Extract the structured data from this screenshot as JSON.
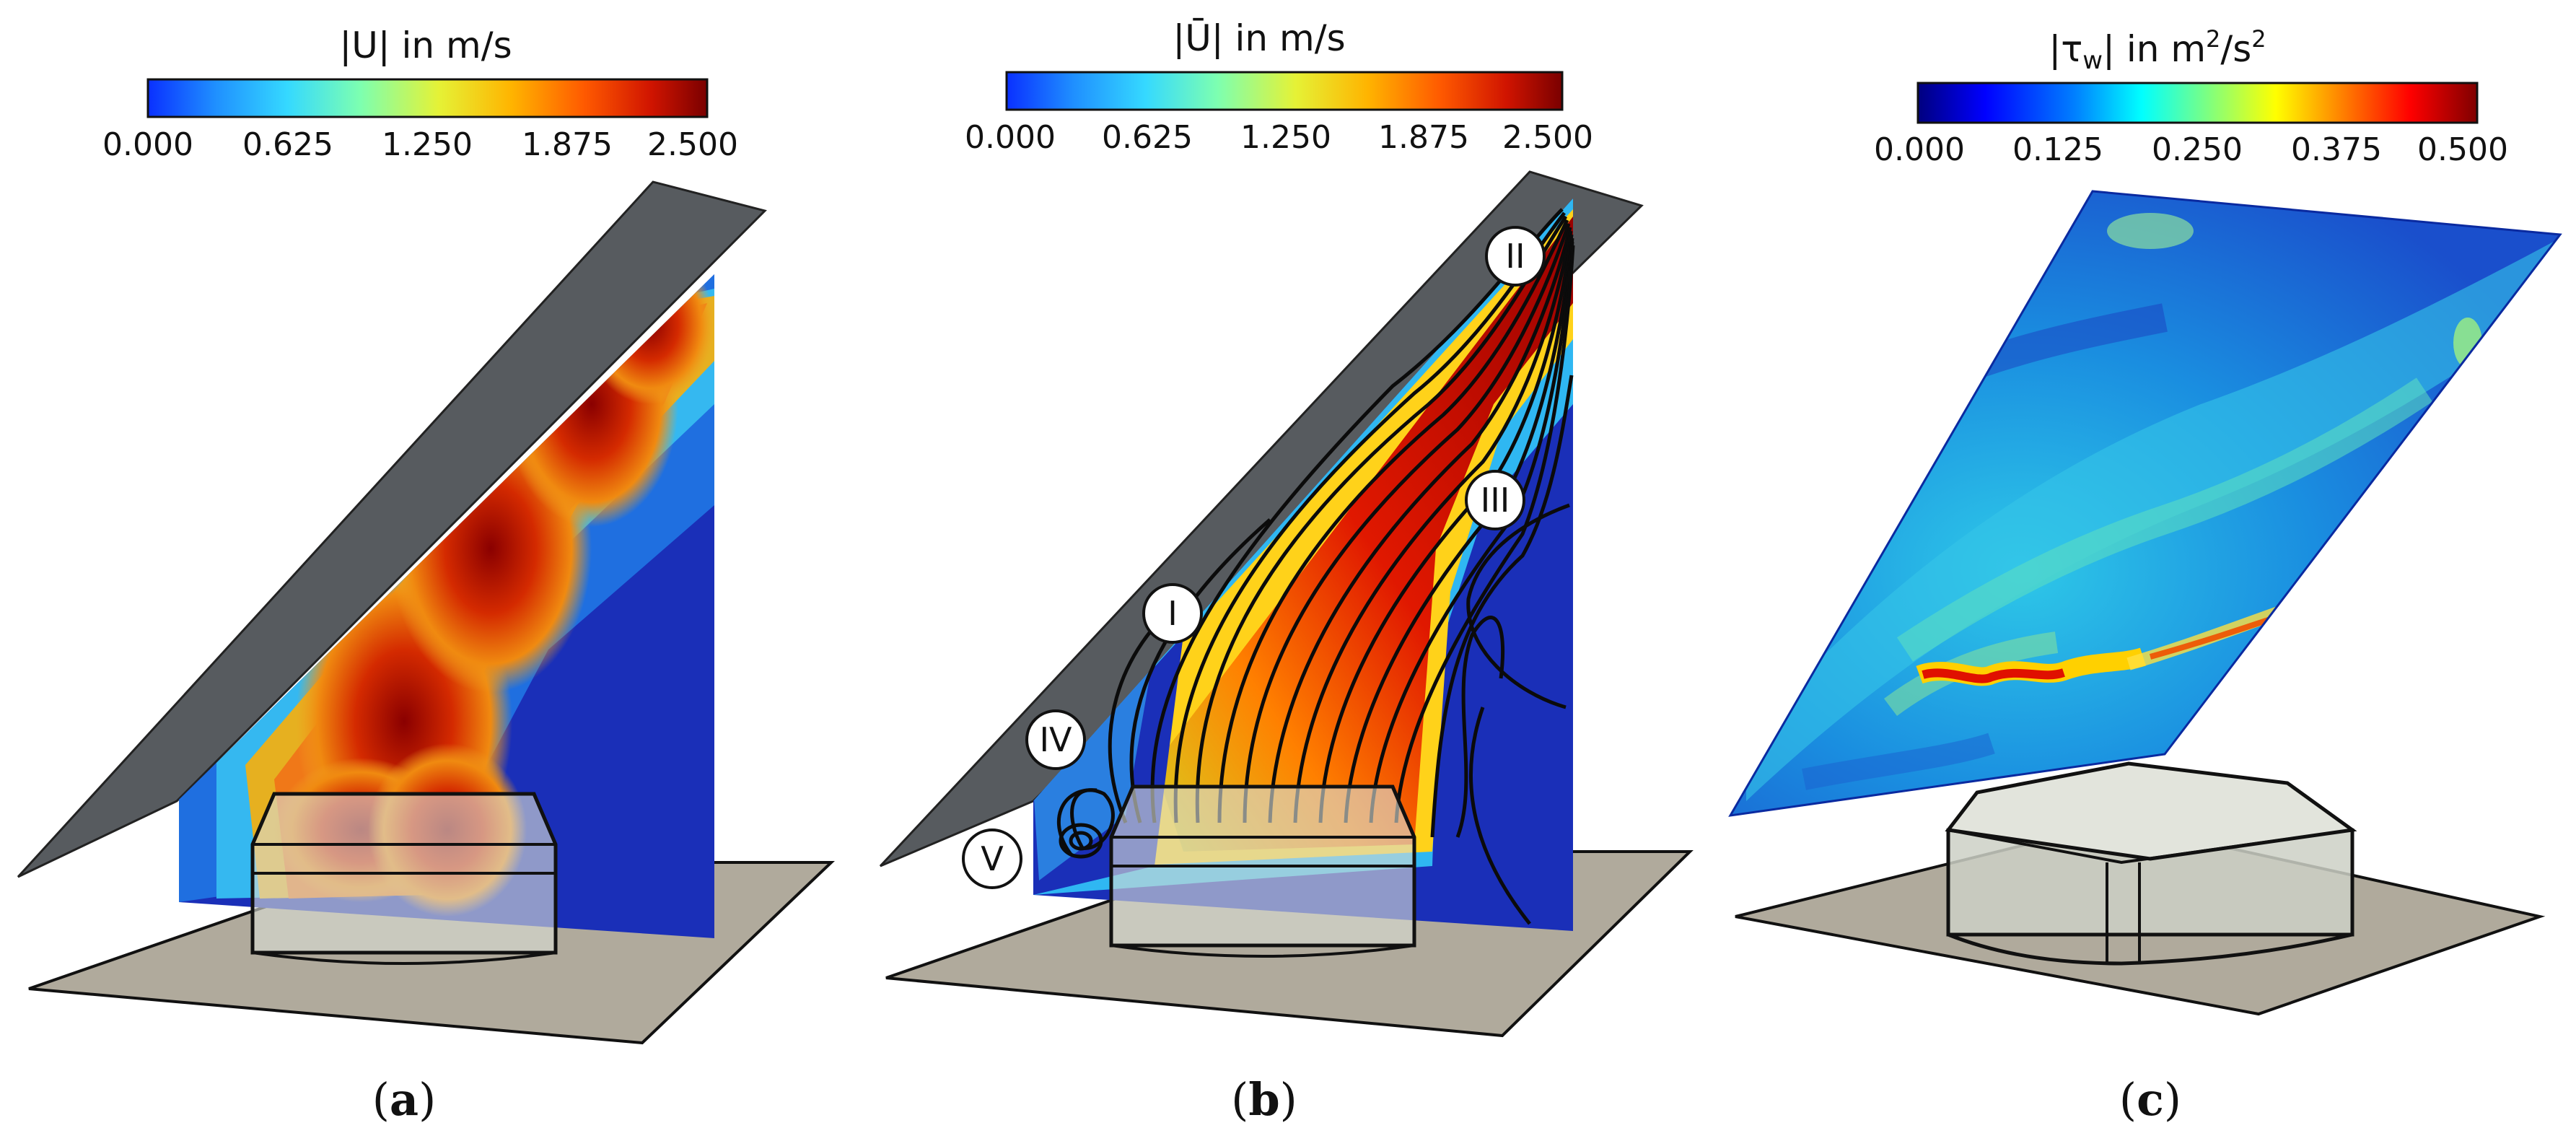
{
  "panels": [
    {
      "caption_letter": "a",
      "colorbar_title": "|U| in m/s",
      "ticks": [
        "0.000",
        "0.625",
        "1.250",
        "1.875",
        "2.500"
      ]
    },
    {
      "caption_letter": "b",
      "colorbar_title": "|Ū| in m/s",
      "ticks": [
        "0.000",
        "0.625",
        "1.250",
        "1.875",
        "2.500"
      ],
      "region_labels": [
        "I",
        "II",
        "III",
        "IV",
        "V"
      ]
    },
    {
      "caption_letter": "c",
      "colorbar_title_base": "|τ",
      "colorbar_title_sub": "w",
      "colorbar_title_mid": "| in m",
      "colorbar_title_sup1": "2",
      "colorbar_title_mid2": "/s",
      "colorbar_title_sup2": "2",
      "ticks": [
        "0.000",
        "0.125",
        "0.250",
        "0.375",
        "0.500"
      ]
    }
  ],
  "colormap_jet": [
    "#00007f",
    "#0000ff",
    "#007fff",
    "#00ffff",
    "#7fff7f",
    "#ffff00",
    "#ff7f00",
    "#ff0000",
    "#7f0000"
  ],
  "colormap_turbo_like": [
    "#0a30ff",
    "#1f8fff",
    "#35d9ff",
    "#7dffb0",
    "#e5f236",
    "#ffb400",
    "#ff5a00",
    "#d01400",
    "#7a0000"
  ],
  "colors": {
    "ground": "#b0aa9c",
    "roof_plate": "#575b5f",
    "slice_blue": "#1a2fb8",
    "building": "#d9dcd3"
  }
}
